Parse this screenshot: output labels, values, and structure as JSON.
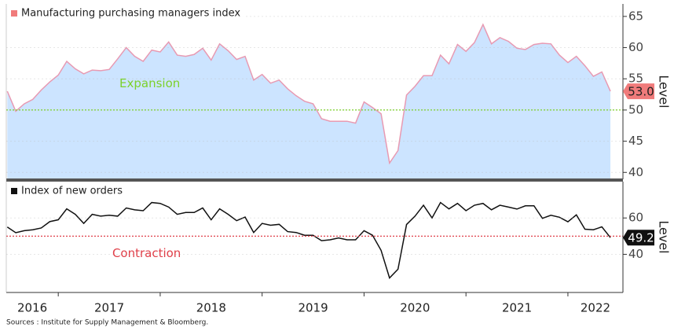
{
  "chart_data": [
    {
      "type": "area",
      "series": [
        {
          "name": "Manufacturing purchasing managers index",
          "color": "#e89ab2",
          "fill": "#cce4ff",
          "legend_color": "#f07b7b",
          "values": [
            53,
            49.8,
            51,
            51.7,
            53.2,
            54.5,
            55.6,
            57.8,
            56.6,
            55.8,
            56.4,
            56.3,
            56.5,
            58.2,
            60.0,
            58.6,
            57.8,
            59.6,
            59.3,
            60.9,
            58.8,
            58.6,
            58.9,
            59.9,
            58.0,
            60.6,
            59.5,
            58.1,
            58.6,
            54.8,
            55.7,
            54.3,
            54.8,
            53.4,
            52.3,
            51.4,
            51.0,
            48.6,
            48.2,
            48.2,
            48.2,
            47.9,
            51.3,
            50.4,
            49.4,
            41.5,
            43.5,
            52.4,
            53.8,
            55.5,
            55.5,
            58.8,
            57.4,
            60.5,
            59.4,
            60.8,
            63.7,
            60.6,
            61.6,
            61.0,
            59.9,
            59.7,
            60.5,
            60.7,
            60.6,
            58.8,
            57.6,
            58.6,
            57.1,
            55.4,
            56.1,
            53.0
          ],
          "last_value_label": "53.0",
          "badge_color": "#f07b7b",
          "badge_text_color": "#222"
        }
      ],
      "x": [
        2016.5,
        2016.583,
        2016.667,
        2016.75,
        2016.833,
        2016.917,
        2017,
        2017.083,
        2017.167,
        2017.25,
        2017.333,
        2017.417,
        2017.5,
        2017.583,
        2017.667,
        2017.75,
        2017.833,
        2017.917,
        2018,
        2018.083,
        2018.167,
        2018.25,
        2018.333,
        2018.417,
        2018.5,
        2018.583,
        2018.667,
        2018.75,
        2018.833,
        2018.917,
        2019,
        2019.083,
        2019.167,
        2019.25,
        2019.333,
        2019.417,
        2019.5,
        2019.583,
        2019.667,
        2019.75,
        2019.833,
        2019.917,
        2020,
        2020.083,
        2020.167,
        2020.25,
        2020.333,
        2020.417,
        2020.5,
        2020.583,
        2020.667,
        2020.75,
        2020.833,
        2020.917,
        2021,
        2021.083,
        2021.167,
        2021.25,
        2021.333,
        2021.417,
        2021.5,
        2021.583,
        2021.667,
        2021.75,
        2021.833,
        2021.917,
        2022,
        2022.083,
        2022.167,
        2022.25,
        2022.333,
        2022.417
      ],
      "xlim": [
        2016.49,
        2022.54
      ],
      "ylim": [
        38.9,
        67
      ],
      "yticks": [
        40,
        45,
        50,
        55,
        60,
        65
      ],
      "y_label": "Level",
      "grid": true,
      "reference_line": {
        "value": 50,
        "color": "#7cd12a",
        "label": "Expansion",
        "label_x": 2017.6,
        "label_y": 54.2
      }
    },
    {
      "type": "line",
      "series": [
        {
          "name": "Index of new orders",
          "color": "#111111",
          "legend_color": "#111111",
          "values": [
            55,
            51.9,
            53,
            53.5,
            54.5,
            58,
            59,
            65,
            62,
            57,
            62,
            61,
            61.5,
            61,
            65.5,
            64.5,
            64,
            68.5,
            68,
            66,
            62,
            63,
            63,
            65.5,
            59,
            65,
            62,
            58.5,
            60.5,
            52,
            57,
            56,
            56.5,
            52.5,
            52,
            50.5,
            50.5,
            47.5,
            48,
            49,
            48,
            48,
            53,
            50.5,
            42.2,
            27,
            31.8,
            56.4,
            61,
            67,
            60,
            68.5,
            65,
            68,
            64,
            67,
            68,
            64.5,
            67,
            66,
            64.9,
            66.7,
            66.7,
            59.8,
            61.5,
            60.4,
            57.9,
            61.7,
            53.8,
            53.5,
            55.1,
            49.2
          ],
          "last_value_label": "49.2",
          "badge_color": "#111111",
          "badge_text_color": "#ffffff"
        }
      ],
      "x": [
        2016.5,
        2016.583,
        2016.667,
        2016.75,
        2016.833,
        2016.917,
        2017,
        2017.083,
        2017.167,
        2017.25,
        2017.333,
        2017.417,
        2017.5,
        2017.583,
        2017.667,
        2017.75,
        2017.833,
        2017.917,
        2018,
        2018.083,
        2018.167,
        2018.25,
        2018.333,
        2018.417,
        2018.5,
        2018.583,
        2018.667,
        2018.75,
        2018.833,
        2018.917,
        2019,
        2019.083,
        2019.167,
        2019.25,
        2019.333,
        2019.417,
        2019.5,
        2019.583,
        2019.667,
        2019.75,
        2019.833,
        2019.917,
        2020,
        2020.083,
        2020.167,
        2020.25,
        2020.333,
        2020.417,
        2020.5,
        2020.583,
        2020.667,
        2020.75,
        2020.833,
        2020.917,
        2021,
        2021.083,
        2021.167,
        2021.25,
        2021.333,
        2021.417,
        2021.5,
        2021.583,
        2021.667,
        2021.75,
        2021.833,
        2021.917,
        2022,
        2022.083,
        2022.167,
        2022.25,
        2022.333,
        2022.417
      ],
      "xlim": [
        2016.49,
        2022.54
      ],
      "xticks": [
        {
          "value": 2016,
          "label": "2016"
        },
        {
          "value": 2017,
          "label": "2017"
        },
        {
          "value": 2018,
          "label": "2018"
        },
        {
          "value": 2019,
          "label": "2019"
        },
        {
          "value": 2020,
          "label": "2020"
        },
        {
          "value": 2021,
          "label": "2021"
        },
        {
          "value": 2022,
          "label": "2022"
        }
      ],
      "ylim": [
        19,
        80
      ],
      "yticks": [
        40,
        60
      ],
      "y_label": "Level",
      "grid": true,
      "reference_line": {
        "value": 50,
        "color": "#e0404a",
        "label": "Contraction",
        "label_x": 2017.53,
        "label_y": 40.5
      }
    }
  ],
  "source": "Sources : Institute for Supply Management & Bloomberg."
}
